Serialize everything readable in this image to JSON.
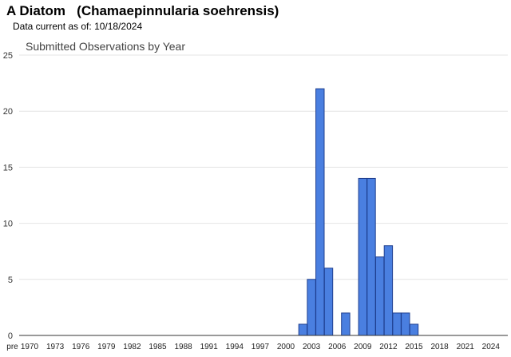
{
  "header": {
    "title": "A Diatom   (Chamaepinnularia soehrensis)",
    "data_current_label": "Data current as of:",
    "data_current_date": "10/18/2024"
  },
  "colors": {
    "bar_fill": "#4a7fe0",
    "bar_stroke": "#1f3f8f",
    "grid": "#e4e4e4",
    "axis": "#333333"
  },
  "chart_data": {
    "type": "bar",
    "title": "Submitted Observations by Year",
    "xlabel": "",
    "ylabel": "",
    "ylim": [
      0,
      25
    ],
    "yticks": [
      0,
      5,
      10,
      15,
      20,
      25
    ],
    "grid": true,
    "legend": "none",
    "x_tick_labels": [
      "pre",
      "1970",
      "1973",
      "1976",
      "1979",
      "1982",
      "1985",
      "1988",
      "1991",
      "1994",
      "1997",
      "2000",
      "2003",
      "2006",
      "2009",
      "2012",
      "2015",
      "2018",
      "2021",
      "2024"
    ],
    "categories": [
      "pre",
      "1970",
      "1971",
      "1972",
      "1973",
      "1974",
      "1975",
      "1976",
      "1977",
      "1978",
      "1979",
      "1980",
      "1981",
      "1982",
      "1983",
      "1984",
      "1985",
      "1986",
      "1987",
      "1988",
      "1989",
      "1990",
      "1991",
      "1992",
      "1993",
      "1994",
      "1995",
      "1996",
      "1997",
      "1998",
      "1999",
      "2000",
      "2001",
      "2002",
      "2003",
      "2004",
      "2005",
      "2006",
      "2007",
      "2008",
      "2009",
      "2010",
      "2011",
      "2012",
      "2013",
      "2014",
      "2015",
      "2016",
      "2017",
      "2018",
      "2019",
      "2020",
      "2021",
      "2022",
      "2023",
      "2024"
    ],
    "values": [
      0,
      0,
      0,
      0,
      0,
      0,
      0,
      0,
      0,
      0,
      0,
      0,
      0,
      0,
      0,
      0,
      0,
      0,
      0,
      0,
      0,
      0,
      0,
      0,
      0,
      0,
      0,
      0,
      0,
      0,
      0,
      0,
      0,
      1,
      5,
      22,
      6,
      0,
      2,
      0,
      14,
      14,
      7,
      8,
      2,
      2,
      1,
      0,
      0,
      0,
      0,
      0,
      0,
      0,
      0,
      0
    ]
  }
}
